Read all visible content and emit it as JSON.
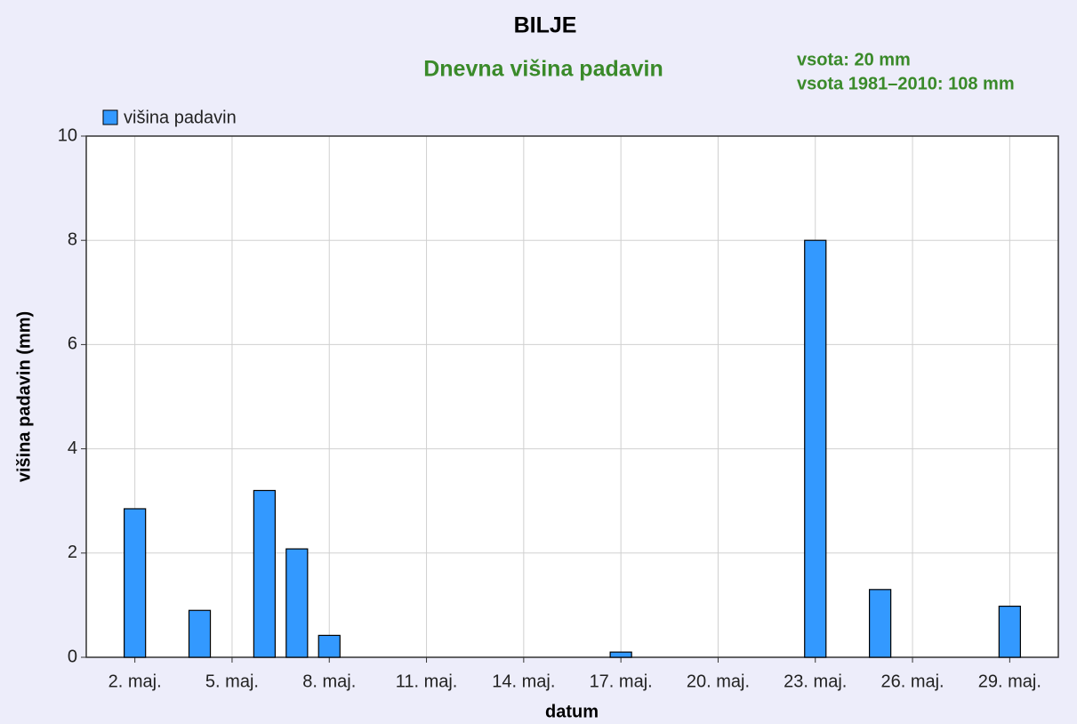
{
  "chart_data": {
    "type": "bar",
    "title": "BILJE",
    "subtitle": "Dnevna višina padavin",
    "annotations": [
      "vsota: 20 mm",
      "vsota 1981–2010: 108 mm"
    ],
    "xlabel": "datum",
    "ylabel": "višina padavin (mm)",
    "x": [
      2,
      4,
      6,
      7,
      8,
      17,
      23,
      25,
      29
    ],
    "series": [
      {
        "name": "višina padavin",
        "color": "#3399ff",
        "values": [
          2.85,
          0.9,
          3.2,
          2.08,
          0.42,
          0.1,
          8.0,
          1.3,
          0.98
        ]
      }
    ],
    "xlim": [
      0.5,
      30.5
    ],
    "xticks": [
      {
        "value": 2,
        "label": "2. maj."
      },
      {
        "value": 5,
        "label": "5. maj."
      },
      {
        "value": 8,
        "label": "8. maj."
      },
      {
        "value": 11,
        "label": "11. maj."
      },
      {
        "value": 14,
        "label": "14. maj."
      },
      {
        "value": 17,
        "label": "17. maj."
      },
      {
        "value": 20,
        "label": "20. maj."
      },
      {
        "value": 23,
        "label": "23. maj."
      },
      {
        "value": 26,
        "label": "26. maj."
      },
      {
        "value": 29,
        "label": "29. maj."
      }
    ],
    "ylim": [
      0,
      10
    ],
    "yticks": [
      0,
      2,
      4,
      6,
      8,
      10
    ],
    "grid": true,
    "legend": "top-left"
  }
}
